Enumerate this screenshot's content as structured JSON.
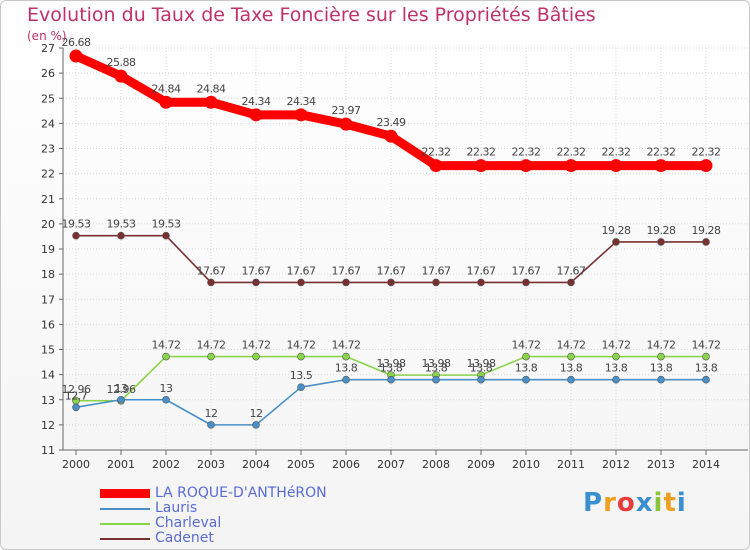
{
  "chart_data": {
    "type": "line",
    "title": "Evolution du Taux de Taxe Foncière sur les Propriétés Bâties",
    "unit": "(en %)",
    "x": [
      "2000",
      "2001",
      "2002",
      "2003",
      "2004",
      "2005",
      "2006",
      "2007",
      "2008",
      "2009",
      "2010",
      "2011",
      "2012",
      "2013",
      "2014"
    ],
    "ylim": [
      11,
      27
    ],
    "yticks": [
      "11",
      "12",
      "13",
      "14",
      "15",
      "16",
      "17",
      "18",
      "19",
      "20",
      "21",
      "22",
      "23",
      "24",
      "25",
      "26",
      "27"
    ],
    "grid": true,
    "series": [
      {
        "name": "LA ROQUE-D'ANTHéRON",
        "color": "#ff0000",
        "values": [
          26.68,
          25.88,
          24.84,
          24.84,
          24.34,
          24.34,
          23.97,
          23.49,
          22.32,
          22.32,
          22.32,
          22.32,
          22.32,
          22.32,
          22.32
        ],
        "labels": [
          "26.68",
          "25.88",
          "24.84",
          "24.84",
          "24.34",
          "24.34",
          "23.97",
          "23.49",
          "22.32",
          "22.32",
          "22.32",
          "22.32",
          "22.32",
          "22.32",
          "22.32"
        ]
      },
      {
        "name": "Lauris",
        "color": "#4a90c8",
        "values": [
          12.7,
          13,
          13,
          12,
          12,
          13.5,
          13.8,
          13.8,
          13.8,
          13.8,
          13.8,
          13.8,
          13.8,
          13.8,
          13.8
        ],
        "labels": [
          "12.7",
          "13",
          "13",
          "12",
          "12",
          "13.5",
          "13.8",
          "13.8",
          "13.8",
          "13.8",
          "13.8",
          "13.8",
          "13.8",
          "13.8",
          "13.8"
        ]
      },
      {
        "name": "Charleval",
        "color": "#8ad44a",
        "values": [
          12.96,
          12.96,
          14.72,
          14.72,
          14.72,
          14.72,
          14.72,
          13.98,
          13.98,
          13.98,
          14.72,
          14.72,
          14.72,
          14.72,
          14.72
        ],
        "labels": [
          "12.96",
          "12.96",
          "14.72",
          "14.72",
          "14.72",
          "14.72",
          "14.72",
          "13.98",
          "13.98",
          "13.98",
          "14.72",
          "14.72",
          "14.72",
          "14.72",
          "14.72"
        ]
      },
      {
        "name": "Cadenet",
        "color": "#7a3030",
        "values": [
          19.53,
          19.53,
          19.53,
          17.67,
          17.67,
          17.67,
          17.67,
          17.67,
          17.67,
          17.67,
          17.67,
          17.67,
          19.28,
          19.28,
          19.28
        ],
        "labels": [
          "19.53",
          "19.53",
          "19.53",
          "17.67",
          "17.67",
          "17.67",
          "17.67",
          "17.67",
          "17.67",
          "17.67",
          "17.67",
          "17.67",
          "19.28",
          "19.28",
          "19.28"
        ]
      }
    ]
  },
  "logo": {
    "letters": [
      "P",
      "r",
      "o",
      "x",
      "i",
      "t",
      "i"
    ],
    "colors": [
      "#3a8fd0",
      "#f0a020",
      "#e83c3c",
      "#3a8fd0",
      "#8ac43a",
      "#f0a020",
      "#3a8fd0"
    ]
  }
}
